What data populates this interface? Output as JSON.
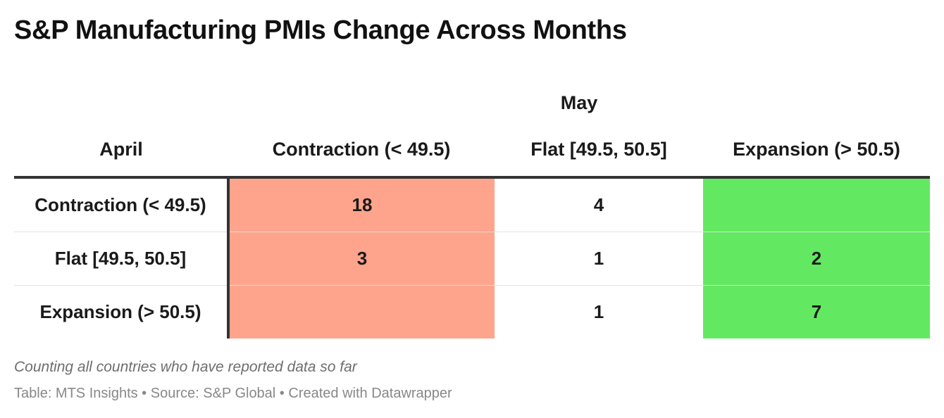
{
  "title": "S&P Manufacturing PMIs Change Across Months",
  "chart_data": {
    "type": "table",
    "column_group_label": "May",
    "row_header_label": "April",
    "columns": [
      "Contraction (< 49.5)",
      "Flat [49.5, 50.5]",
      "Expansion (> 50.5)"
    ],
    "rows": [
      {
        "label": "Contraction (< 49.5)",
        "values": [
          "18",
          "4",
          ""
        ]
      },
      {
        "label": "Flat [49.5, 50.5]",
        "values": [
          "3",
          "1",
          "2"
        ]
      },
      {
        "label": "Expansion (> 50.5)",
        "values": [
          "",
          "1",
          "7"
        ]
      }
    ],
    "column_colors": {
      "contraction": "#ffa48c",
      "flat": "#ffffff",
      "expansion": "#63e961"
    }
  },
  "footer": {
    "note": "Counting all countries who have reported data so far",
    "source": "Table: MTS Insights • Source: S&P Global • Created with Datawrapper"
  }
}
